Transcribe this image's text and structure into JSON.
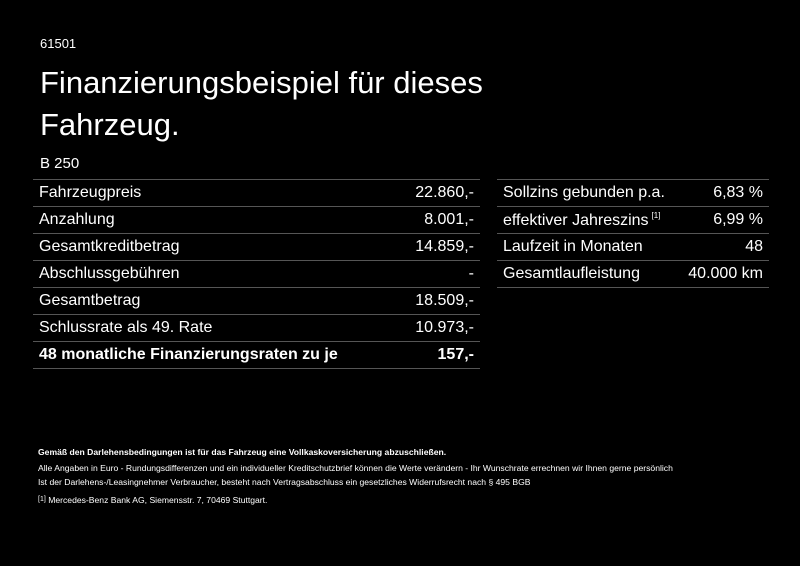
{
  "header": {
    "id": "61501",
    "title": "Finanzierungsbeispiel für dieses Fahrzeug.",
    "model": "B 250"
  },
  "left_table": {
    "rows": [
      {
        "label": "Fahrzeugpreis",
        "value": "22.860,-"
      },
      {
        "label": "Anzahlung",
        "value": "8.001,-"
      },
      {
        "label": "Gesamtkreditbetrag",
        "value": "14.859,-"
      },
      {
        "label": "Abschlussgebühren",
        "value": "-"
      },
      {
        "label": "Gesamtbetrag",
        "value": "18.509,-"
      },
      {
        "label": "Schlussrate als 49. Rate",
        "value": "10.973,-"
      },
      {
        "label": "48 monatliche Finanzierungsraten zu je",
        "value": "157,-"
      }
    ]
  },
  "right_table": {
    "rows": [
      {
        "label": "Sollzins gebunden p.a.",
        "value": "6,83 %"
      },
      {
        "label": "effektiver Jahreszins",
        "note": "[1]",
        "value": "6,99 %"
      },
      {
        "label": "Laufzeit in Monaten",
        "value": "48"
      },
      {
        "label": "Gesamtlaufleistung",
        "value": "40.000 km"
      }
    ]
  },
  "footer": {
    "bold": "Gemäß den Darlehensbedingungen ist für das Fahrzeug eine Vollkaskoversicherung abzuschließen.",
    "lines": [
      "Alle Angaben in Euro - Rundungsdifferenzen und ein individueller Kreditschutzbrief können die Werte verändern - Ihr Wunschrate errechnen wir Ihnen gerne persönlich",
      "Ist der Darlehens-/Leasingnehmer Verbraucher, besteht nach Vertragsabschluss ein gesetzliches Widerrufsrecht nach § 495 BGB"
    ],
    "note_marker": "[1]",
    "note_text": "Mercedes-Benz Bank AG, Siemensstr. 7, 70469 Stuttgart."
  }
}
